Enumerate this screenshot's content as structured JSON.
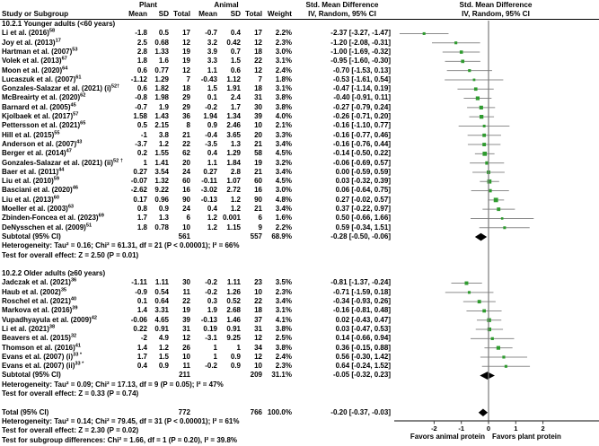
{
  "header": {
    "study": "Study or Subgroup",
    "plant": "Plant",
    "animal": "Animal",
    "mean": "Mean",
    "sd": "SD",
    "total": "Total",
    "weight": "Weight",
    "smd1": "Std. Mean Difference",
    "smd2": "IV, Random, 95% CI"
  },
  "colors": {
    "marker_green": "#2e9b2e",
    "ci_line_gray": "#8c8c8c",
    "diamond_black": "#000000",
    "zero_line": "#7a7a7a",
    "axis": "#3a3a3a",
    "text": "#000000",
    "background": "#ffffff"
  },
  "chart_data": {
    "type": "forest",
    "effect_measure": "Std. Mean Difference",
    "method": "IV, Random, 95% CI",
    "x_ticks": [
      -2,
      -1,
      0,
      1,
      2
    ],
    "x_range_visible": [
      -3.5,
      4.0
    ],
    "favors_left": "Favors animal protein",
    "favors_right": "Favors plant protein",
    "rows": [
      {
        "type": "group",
        "label": "10.2.1 Younger adults (<60 years)"
      },
      {
        "type": "study",
        "label": "Li et al. (2016)",
        "sup": "58",
        "pm": "-1.8",
        "psd": "0.5",
        "pt": "17",
        "am": "-0.7",
        "asd": "0.4",
        "at": "17",
        "w": "2.2%",
        "ci": "-2.37 [-3.27, -1.47]",
        "est": -2.37,
        "lo": -3.27,
        "hi": -1.47,
        "wnum": 2.2
      },
      {
        "type": "study",
        "label": "Joy et al. (2013)",
        "sup": "17",
        "pm": "2.5",
        "psd": "0.68",
        "pt": "12",
        "am": "3.2",
        "asd": "0.42",
        "at": "12",
        "w": "2.3%",
        "ci": "-1.20 [-2.08, -0.31]",
        "est": -1.2,
        "lo": -2.08,
        "hi": -0.31,
        "wnum": 2.3
      },
      {
        "type": "study",
        "label": "Hartman et al. (2007)",
        "sup": "53",
        "pm": "2.8",
        "psd": "1.33",
        "pt": "19",
        "am": "3.9",
        "asd": "0.7",
        "at": "18",
        "w": "3.0%",
        "ci": "-1.00 [-1.69, -0.32]",
        "est": -1.0,
        "lo": -1.69,
        "hi": -0.32,
        "wnum": 3.0
      },
      {
        "type": "study",
        "label": "Volek et al. (2013)",
        "sup": "67",
        "pm": "1.8",
        "psd": "1.6",
        "pt": "19",
        "am": "3.3",
        "asd": "1.5",
        "at": "22",
        "w": "3.1%",
        "ci": "-0.95 [-1.60, -0.30]",
        "est": -0.95,
        "lo": -1.6,
        "hi": -0.3,
        "wnum": 3.1
      },
      {
        "type": "study",
        "label": "Moon et al. (2020)",
        "sup": "64",
        "pm": "0.6",
        "psd": "0.77",
        "pt": "12",
        "am": "1.1",
        "asd": "0.6",
        "at": "12",
        "w": "2.4%",
        "ci": "-0.70 [-1.53, 0.13]",
        "est": -0.7,
        "lo": -1.53,
        "hi": 0.13,
        "wnum": 2.4
      },
      {
        "type": "study",
        "label": "Lucaszuk et al. (2007)",
        "sup": "61",
        "pm": "-1.12",
        "psd": "1.29",
        "pt": "7",
        "am": "-0.43",
        "asd": "1.12",
        "at": "7",
        "w": "1.8%",
        "ci": "-0.53 [-1.61, 0.54]",
        "est": -0.53,
        "lo": -1.61,
        "hi": 0.54,
        "wnum": 1.8
      },
      {
        "type": "study",
        "label": "Gonzales-Salazar et al. (2021) (i)",
        "sup": "52†",
        "pm": "0.6",
        "psd": "1.82",
        "pt": "18",
        "am": "1.5",
        "asd": "1.91",
        "at": "18",
        "w": "3.1%",
        "ci": "-0.47 [-1.14, 0.19]",
        "est": -0.47,
        "lo": -1.14,
        "hi": 0.19,
        "wnum": 3.1
      },
      {
        "type": "study",
        "label": "McBreairty et al. (2020)",
        "sup": "62",
        "pm": "-0.8",
        "psd": "1.98",
        "pt": "29",
        "am": "0.1",
        "asd": "2.4",
        "at": "31",
        "w": "3.8%",
        "ci": "-0.40 [-0.91, 0.11]",
        "est": -0.4,
        "lo": -0.91,
        "hi": 0.11,
        "wnum": 3.8
      },
      {
        "type": "study",
        "label": "Barnard et al. (2005)",
        "sup": "45",
        "pm": "-0.7",
        "psd": "1.9",
        "pt": "29",
        "am": "-0.2",
        "asd": "1.7",
        "at": "30",
        "w": "3.8%",
        "ci": "-0.27 [-0.79, 0.24]",
        "est": -0.27,
        "lo": -0.79,
        "hi": 0.24,
        "wnum": 3.8
      },
      {
        "type": "study",
        "label": "Kjolbaek et al. (2017)",
        "sup": "57",
        "pm": "1.58",
        "psd": "1.43",
        "pt": "36",
        "am": "1.94",
        "asd": "1.34",
        "at": "39",
        "w": "4.0%",
        "ci": "-0.26 [-0.71, 0.20]",
        "est": -0.26,
        "lo": -0.71,
        "hi": 0.2,
        "wnum": 4.0
      },
      {
        "type": "study",
        "label": "Pettersson et al. (2021)",
        "sup": "65",
        "pm": "0.5",
        "psd": "2.15",
        "pt": "8",
        "am": "0.9",
        "asd": "2.46",
        "at": "10",
        "w": "2.1%",
        "ci": "-0.16 [-1.10, 0.77]",
        "est": -0.16,
        "lo": -1.1,
        "hi": 0.77,
        "wnum": 2.1
      },
      {
        "type": "study",
        "label": "Hill et al. (2015)",
        "sup": "55",
        "pm": "-1",
        "psd": "3.8",
        "pt": "21",
        "am": "-0.4",
        "asd": "3.65",
        "at": "20",
        "w": "3.3%",
        "ci": "-0.16 [-0.77, 0.46]",
        "est": -0.16,
        "lo": -0.77,
        "hi": 0.46,
        "wnum": 3.3
      },
      {
        "type": "study",
        "label": "Anderson et al. (2007)",
        "sup": "43",
        "pm": "-3.7",
        "psd": "1.2",
        "pt": "22",
        "am": "-3.5",
        "asd": "1.3",
        "at": "21",
        "w": "3.4%",
        "ci": "-0.16 [-0.76, 0.44]",
        "est": -0.16,
        "lo": -0.76,
        "hi": 0.44,
        "wnum": 3.4
      },
      {
        "type": "study",
        "label": "Berger et al. (2014)",
        "sup": "47",
        "pm": "0.2",
        "psd": "1.55",
        "pt": "62",
        "am": "0.4",
        "asd": "1.29",
        "at": "58",
        "w": "4.5%",
        "ci": "-0.14 [-0.50, 0.22]",
        "est": -0.14,
        "lo": -0.5,
        "hi": 0.22,
        "wnum": 4.5
      },
      {
        "type": "study",
        "label": "Gonzales-Salazar et al. (2021) (ii)",
        "sup": "52 †",
        "pm": "1",
        "psd": "1.41",
        "pt": "20",
        "am": "1.1",
        "asd": "1.84",
        "at": "19",
        "w": "3.2%",
        "ci": "-0.06 [-0.69, 0.57]",
        "est": -0.06,
        "lo": -0.69,
        "hi": 0.57,
        "wnum": 3.2
      },
      {
        "type": "study",
        "label": "Baer et al. (2011)",
        "sup": "44",
        "pm": "0.27",
        "psd": "3.54",
        "pt": "24",
        "am": "0.27",
        "asd": "2.8",
        "at": "21",
        "w": "3.4%",
        "ci": "0.00 [-0.59, 0.59]",
        "est": 0.0,
        "lo": -0.59,
        "hi": 0.59,
        "wnum": 3.4
      },
      {
        "type": "study",
        "label": "Liu et al. (2010)",
        "sup": "59",
        "pm": "-0.07",
        "psd": "1.32",
        "pt": "60",
        "am": "-0.11",
        "asd": "1.07",
        "at": "60",
        "w": "4.5%",
        "ci": "0.03 [-0.32, 0.39]",
        "est": 0.03,
        "lo": -0.32,
        "hi": 0.39,
        "wnum": 4.5
      },
      {
        "type": "study",
        "label": "Basciani et al. (2020)",
        "sup": "46",
        "pm": "-2.62",
        "psd": "9.22",
        "pt": "16",
        "am": "-3.02",
        "asd": "2.72",
        "at": "16",
        "w": "3.0%",
        "ci": "0.06 [-0.64, 0.75]",
        "est": 0.06,
        "lo": -0.64,
        "hi": 0.75,
        "wnum": 3.0
      },
      {
        "type": "study",
        "label": "Liu et al. (2013)",
        "sup": "60",
        "pm": "0.17",
        "psd": "0.96",
        "pt": "90",
        "am": "-0.13",
        "asd": "1.2",
        "at": "90",
        "w": "4.8%",
        "ci": "0.27 [-0.02, 0.57]",
        "est": 0.27,
        "lo": -0.02,
        "hi": 0.57,
        "wnum": 4.8
      },
      {
        "type": "study",
        "label": "Moeller et al. (2003)",
        "sup": "63",
        "pm": "0.8",
        "psd": "0.9",
        "pt": "24",
        "am": "0.4",
        "asd": "1.2",
        "at": "21",
        "w": "3.4%",
        "ci": "0.37 [-0.22, 0.97]",
        "est": 0.37,
        "lo": -0.22,
        "hi": 0.97,
        "wnum": 3.4
      },
      {
        "type": "study",
        "label": "Zbinden-Foncea et al. (2023)",
        "sup": "69",
        "pm": "1.7",
        "psd": "1.3",
        "pt": "6",
        "am": "1.2",
        "asd": "0.001",
        "at": "6",
        "w": "1.6%",
        "ci": "0.50 [-0.66, 1.66]",
        "est": 0.5,
        "lo": -0.66,
        "hi": 1.66,
        "wnum": 1.6
      },
      {
        "type": "study",
        "label": "DeNysschen et al. (2009)",
        "sup": "51",
        "pm": "1.8",
        "psd": "0.78",
        "pt": "10",
        "am": "1.2",
        "asd": "1.15",
        "at": "9",
        "w": "2.2%",
        "ci": "0.59 [-0.34, 1.51]",
        "est": 0.59,
        "lo": -0.34,
        "hi": 1.51,
        "wnum": 2.2
      },
      {
        "type": "subtotal",
        "label": "Subtotal (95% CI)",
        "pt": "561",
        "at": "557",
        "w": "68.9%",
        "ci": "-0.28 [-0.50, -0.06]",
        "est": -0.28,
        "lo": -0.5,
        "hi": -0.06
      },
      {
        "type": "text",
        "label": "Heterogeneity: Tau² = 0.16; Chi² = 61.31, df = 21 (P < 0.00001); I² = 66%"
      },
      {
        "type": "text",
        "label": "Test for overall effect: Z = 2.50 (P = 0.01)"
      },
      {
        "type": "blank"
      },
      {
        "type": "group",
        "label": "10.2.2 Older adults (≥60 years)"
      },
      {
        "type": "study",
        "label": "Jadczak et al. (2021)",
        "sup": "36",
        "pm": "-1.11",
        "psd": "1.11",
        "pt": "30",
        "am": "-0.2",
        "asd": "1.11",
        "at": "23",
        "w": "3.5%",
        "ci": "-0.81 [-1.37, -0.24]",
        "est": -0.81,
        "lo": -1.37,
        "hi": -0.24,
        "wnum": 3.5
      },
      {
        "type": "study",
        "label": "Haub et al. (2002)",
        "sup": "35",
        "pm": "-0.9",
        "psd": "0.54",
        "pt": "11",
        "am": "-0.2",
        "asd": "1.26",
        "at": "10",
        "w": "2.3%",
        "ci": "-0.71 [-1.59, 0.18]",
        "est": -0.71,
        "lo": -1.59,
        "hi": 0.18,
        "wnum": 2.3
      },
      {
        "type": "study",
        "label": "Roschel et al. (2021)",
        "sup": "40",
        "pm": "0.1",
        "psd": "0.64",
        "pt": "22",
        "am": "0.3",
        "asd": "0.52",
        "at": "22",
        "w": "3.4%",
        "ci": "-0.34 [-0.93, 0.26]",
        "est": -0.34,
        "lo": -0.93,
        "hi": 0.26,
        "wnum": 3.4
      },
      {
        "type": "study",
        "label": "Markova et al. (2016)",
        "sup": "39",
        "pm": "1.4",
        "psd": "3.31",
        "pt": "19",
        "am": "1.9",
        "asd": "2.68",
        "at": "18",
        "w": "3.1%",
        "ci": "-0.16 [-0.81, 0.48]",
        "est": -0.16,
        "lo": -0.81,
        "hi": 0.48,
        "wnum": 3.1
      },
      {
        "type": "study",
        "label": "Vupadhyayula et al. (2009)",
        "sup": "42",
        "pm": "-0.06",
        "psd": "4.65",
        "pt": "39",
        "am": "-0.13",
        "asd": "1.46",
        "at": "37",
        "w": "4.1%",
        "ci": "0.02 [-0.43, 0.47]",
        "est": 0.02,
        "lo": -0.43,
        "hi": 0.47,
        "wnum": 4.1
      },
      {
        "type": "study",
        "label": "Li et al. (2021)",
        "sup": "38",
        "pm": "0.22",
        "psd": "0.91",
        "pt": "31",
        "am": "0.19",
        "asd": "0.91",
        "at": "31",
        "w": "3.8%",
        "ci": "0.03 [-0.47, 0.53]",
        "est": 0.03,
        "lo": -0.47,
        "hi": 0.53,
        "wnum": 3.8
      },
      {
        "type": "study",
        "label": "Beavers et al. (2015)",
        "sup": "32",
        "pm": "-2",
        "psd": "4.9",
        "pt": "12",
        "am": "-3.1",
        "asd": "9.25",
        "at": "12",
        "w": "2.5%",
        "ci": "0.14 [-0.66, 0.94]",
        "est": 0.14,
        "lo": -0.66,
        "hi": 0.94,
        "wnum": 2.5
      },
      {
        "type": "study",
        "label": "Thomson et al. (2016)",
        "sup": "41",
        "pm": "1.4",
        "psd": "1.2",
        "pt": "26",
        "am": "1",
        "asd": "1",
        "at": "34",
        "w": "3.8%",
        "ci": "0.36 [-0.15, 0.88]",
        "est": 0.36,
        "lo": -0.15,
        "hi": 0.88,
        "wnum": 3.8
      },
      {
        "type": "study",
        "label": "Evans et al. (2007) (i)",
        "sup": "33 *",
        "pm": "1.7",
        "psd": "1.5",
        "pt": "10",
        "am": "1",
        "asd": "0.9",
        "at": "12",
        "w": "2.4%",
        "ci": "0.56 [-0.30, 1.42]",
        "est": 0.56,
        "lo": -0.3,
        "hi": 1.42,
        "wnum": 2.4
      },
      {
        "type": "study",
        "label": "Evans et al. (2007) (ii)",
        "sup": "33 *",
        "pm": "0.4",
        "psd": "0.9",
        "pt": "11",
        "am": "-0.2",
        "asd": "0.9",
        "at": "10",
        "w": "2.3%",
        "ci": "0.64 [-0.24, 1.52]",
        "est": 0.64,
        "lo": -0.24,
        "hi": 1.52,
        "wnum": 2.3
      },
      {
        "type": "subtotal",
        "label": "Subtotal (95% CI)",
        "pt": "211",
        "at": "209",
        "w": "31.1%",
        "ci": "-0.05 [-0.32, 0.23]",
        "est": -0.05,
        "lo": -0.32,
        "hi": 0.23
      },
      {
        "type": "text",
        "label": "Heterogeneity: Tau² = 0.09; Chi² = 17.13, df = 9 (P = 0.05); I² = 47%"
      },
      {
        "type": "text",
        "label": "Test for overall effect: Z = 0.33 (P = 0.74)"
      },
      {
        "type": "blank"
      },
      {
        "type": "total",
        "label": "Total (95% CI)",
        "pt": "772",
        "at": "766",
        "w": "100.0%",
        "ci": "-0.20 [-0.37, -0.03]",
        "est": -0.2,
        "lo": -0.37,
        "hi": -0.03
      },
      {
        "type": "text",
        "label": "Heterogeneity: Tau² = 0.14; Chi² = 79.45, df = 31 (P < 0.00001); I² = 61%"
      },
      {
        "type": "text",
        "label": "Test for overall effect: Z = 2.30 (P = 0.02)"
      },
      {
        "type": "text",
        "label": "Test for subgroup differences: Chi² = 1.66, df = 1 (P = 0.20), I² = 39.8%"
      }
    ]
  }
}
